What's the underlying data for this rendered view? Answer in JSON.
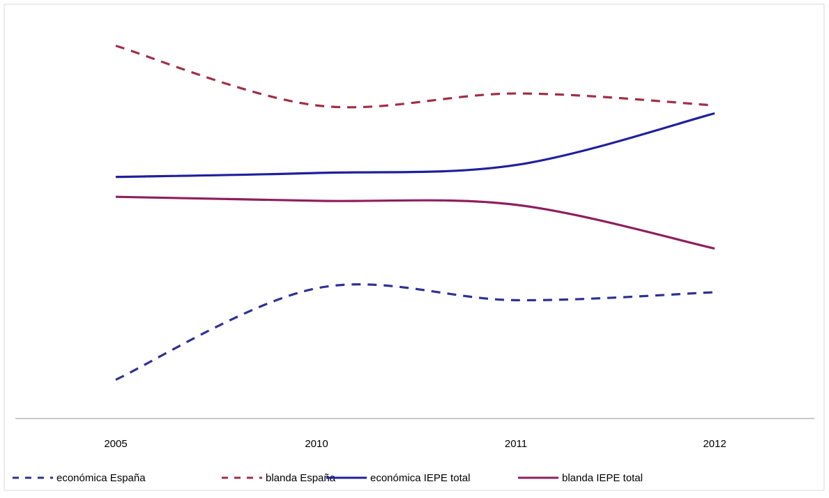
{
  "chart_data": {
    "type": "line",
    "title": "",
    "xlabel": "",
    "ylabel": "",
    "categories": [
      "2005",
      "2010",
      "2011",
      "2012"
    ],
    "ylim": [
      0,
      100
    ],
    "grid": false,
    "y_axis_visible": false,
    "legend_position": "bottom",
    "series": [
      {
        "name": "económica España",
        "values": [
          8,
          31,
          28,
          30
        ],
        "color": "#2e3192",
        "style": "dashed"
      },
      {
        "name": "blanda España",
        "values": [
          92,
          77,
          80,
          77
        ],
        "color": "#9e2f48",
        "style": "dashed"
      },
      {
        "name": "económica IEPE total",
        "values": [
          59,
          60,
          62,
          75
        ],
        "color": "#1f1f9e",
        "style": "solid"
      },
      {
        "name": "blanda IEPE total",
        "values": [
          54,
          53,
          52,
          41
        ],
        "color": "#8e1f5e",
        "style": "solid"
      }
    ]
  }
}
